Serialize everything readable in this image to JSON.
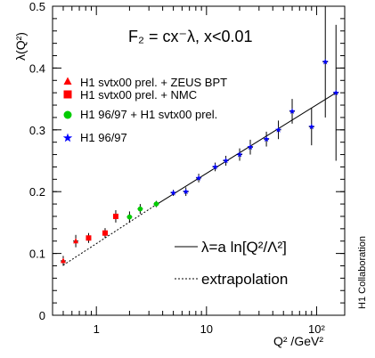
{
  "chart_data": {
    "type": "scatter",
    "title": "F₂ = cx⁻λ,  x<0.01",
    "xlabel": "Q² /GeV²",
    "ylabel": "λ(Q²)",
    "x_scale": "log",
    "xlim": [
      0.4,
      180
    ],
    "ylim": [
      0,
      0.5
    ],
    "x_ticks": [
      1,
      10,
      100
    ],
    "x_tick_labels": [
      "1",
      "10",
      "10²"
    ],
    "y_ticks": [
      0,
      0.1,
      0.2,
      0.3,
      0.4,
      0.5
    ],
    "y_tick_labels": [
      "0",
      "0.1",
      "0.2",
      "0.3",
      "0.4",
      "0.5"
    ],
    "grid": false,
    "legend_position": "top-left",
    "side_label": "H1 Collaboration",
    "series": [
      {
        "name": "H1 svtx00 prel. + ZEUS BPT",
        "marker": "triangle",
        "color": "#ff0000",
        "points": [
          {
            "x": 0.5,
            "y": 0.088,
            "err": 0.008
          },
          {
            "x": 0.65,
            "y": 0.12,
            "err": 0.01
          }
        ]
      },
      {
        "name": "H1 svtx00 prel. + NMC",
        "marker": "square",
        "color": "#ff0000",
        "points": [
          {
            "x": 0.85,
            "y": 0.125,
            "err": 0.008
          },
          {
            "x": 1.2,
            "y": 0.133,
            "err": 0.008
          },
          {
            "x": 1.5,
            "y": 0.16,
            "err": 0.01
          }
        ]
      },
      {
        "name": "H1 96/97 + H1 svtx00 prel.",
        "marker": "circle",
        "color": "#00cc00",
        "points": [
          {
            "x": 2.0,
            "y": 0.159,
            "err": 0.009
          },
          {
            "x": 2.5,
            "y": 0.172,
            "err": 0.008
          },
          {
            "x": 3.5,
            "y": 0.18,
            "err": 0.005
          }
        ]
      },
      {
        "name": "H1 96/97",
        "marker": "star",
        "color": "#0000ff",
        "points": [
          {
            "x": 5.0,
            "y": 0.198,
            "err": 0.005
          },
          {
            "x": 6.5,
            "y": 0.2,
            "err": 0.007
          },
          {
            "x": 8.5,
            "y": 0.222,
            "err": 0.007
          },
          {
            "x": 12.0,
            "y": 0.24,
            "err": 0.007
          },
          {
            "x": 15.0,
            "y": 0.25,
            "err": 0.008
          },
          {
            "x": 20.0,
            "y": 0.26,
            "err": 0.01
          },
          {
            "x": 25.0,
            "y": 0.272,
            "err": 0.012
          },
          {
            "x": 35.0,
            "y": 0.285,
            "err": 0.012
          },
          {
            "x": 45.0,
            "y": 0.3,
            "err": 0.015
          },
          {
            "x": 60.0,
            "y": 0.33,
            "err": 0.02
          },
          {
            "x": 90.0,
            "y": 0.305,
            "err": 0.03
          },
          {
            "x": 120.0,
            "y": 0.41,
            "err": 0.09
          },
          {
            "x": 150.0,
            "y": 0.36,
            "err": 0.11
          }
        ]
      }
    ],
    "fit": {
      "label": "λ=a ln[Q²/Λ²]",
      "x_start": 3.5,
      "x_end": 150.0,
      "y_start": 0.179,
      "y_end": 0.36
    },
    "extrapolation": {
      "label": "extrapolation",
      "x_start": 0.5,
      "x_end": 3.5,
      "y_start": 0.081,
      "y_end": 0.179
    }
  }
}
